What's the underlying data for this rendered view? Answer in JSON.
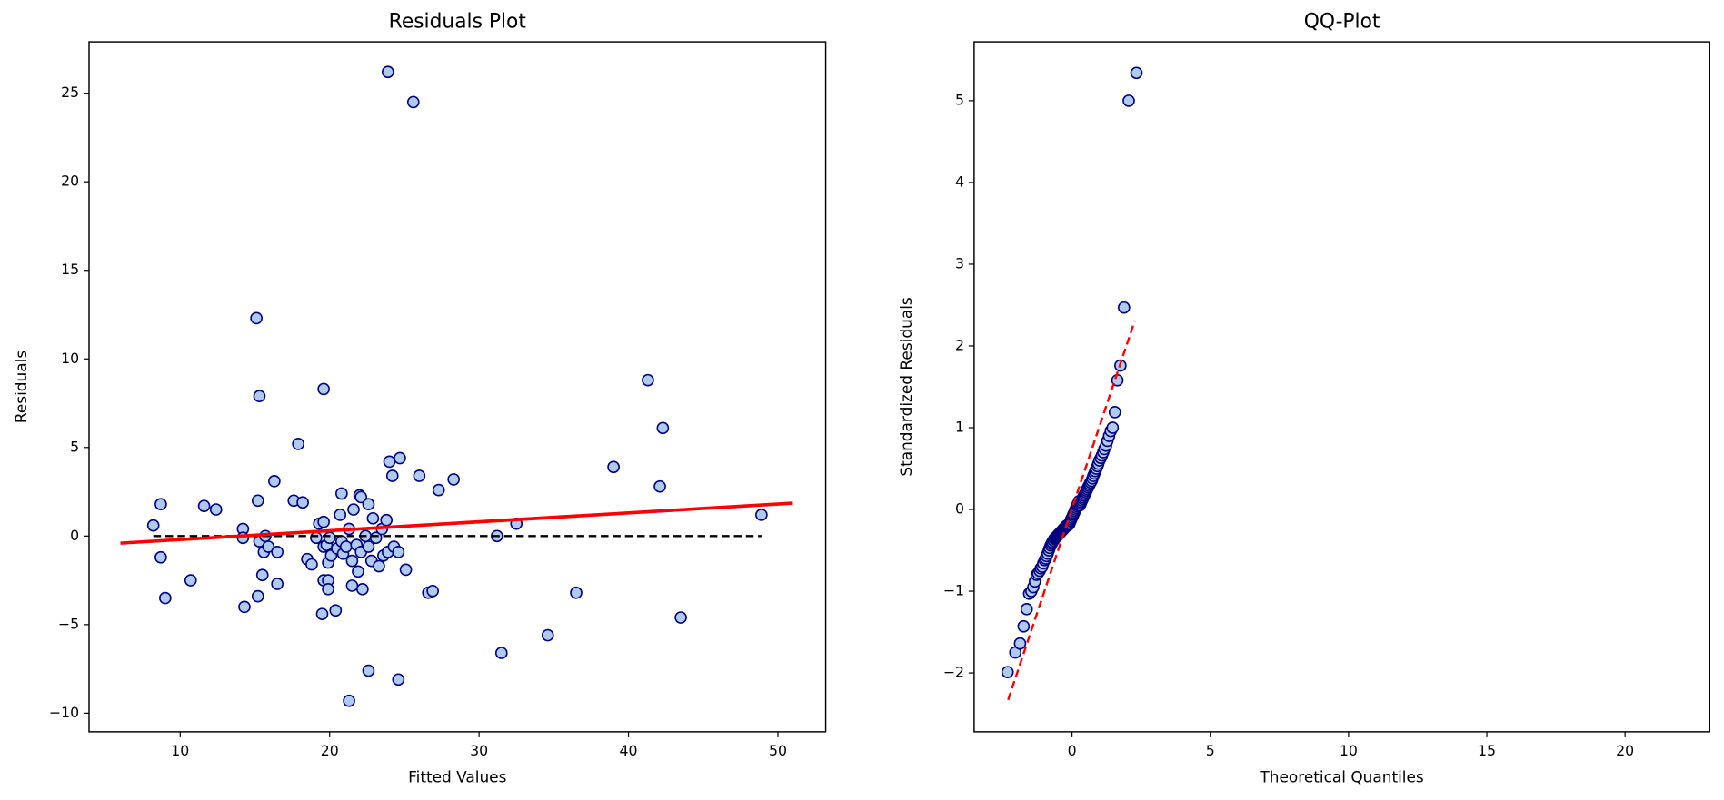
{
  "chart_data": [
    {
      "type": "scatter",
      "title": "Residuals Plot",
      "xlabel": "Fitted Values",
      "ylabel": "Residuals",
      "xlim": [
        3.9,
        53.2
      ],
      "ylim": [
        -11.05,
        27.9
      ],
      "xticks": [
        10,
        20,
        30,
        40,
        50
      ],
      "yticks": [
        {
          "value": -10,
          "label": "−10"
        },
        {
          "value": -5,
          "label": "−5"
        },
        0,
        5,
        10,
        15,
        20,
        25
      ],
      "color": "#aecbee",
      "edgecolor": "#000080",
      "x": [
        8.2,
        8.7,
        8.7,
        9.0,
        10.7,
        11.6,
        12.4,
        14.2,
        14.2,
        14.3,
        15.1,
        15.3,
        15.2,
        15.3,
        15.2,
        15.5,
        15.7,
        15.6,
        15.9,
        16.3,
        16.5,
        16.5,
        17.6,
        17.9,
        18.2,
        18.5,
        18.8,
        19.1,
        19.3,
        19.5,
        19.6,
        19.6,
        19.6,
        19.6,
        19.8,
        19.9,
        19.9,
        19.9,
        20.0,
        20.1,
        20.4,
        20.5,
        20.7,
        20.8,
        20.8,
        20.9,
        21.1,
        21.3,
        21.3,
        21.5,
        21.5,
        21.6,
        21.8,
        21.9,
        22.0,
        22.1,
        22.1,
        22.2,
        22.4,
        22.6,
        22.6,
        22.6,
        22.8,
        22.9,
        23.1,
        23.3,
        23.5,
        23.6,
        23.8,
        23.9,
        23.9,
        24.0,
        24.2,
        24.3,
        24.6,
        24.7,
        24.6,
        25.1,
        25.6,
        26.0,
        26.6,
        26.9,
        27.3,
        28.3,
        31.2,
        31.5,
        32.5,
        34.6,
        36.5,
        39.0,
        41.3,
        42.1,
        42.3,
        43.5,
        48.9
      ],
      "y": [
        0.6,
        1.8,
        -1.2,
        -3.5,
        -2.5,
        1.7,
        1.5,
        0.4,
        -0.1,
        -4.0,
        12.3,
        7.9,
        2.0,
        -0.3,
        -3.4,
        -2.2,
        0.0,
        -0.9,
        -0.6,
        3.1,
        -2.7,
        -0.9,
        2.0,
        5.2,
        1.9,
        -1.3,
        -1.6,
        -0.1,
        0.7,
        -4.4,
        8.3,
        0.8,
        -0.6,
        -2.5,
        -0.5,
        -2.5,
        -3.0,
        -1.5,
        -0.1,
        -1.1,
        -4.2,
        -0.7,
        1.2,
        2.4,
        -0.3,
        -1.0,
        -0.6,
        -9.3,
        0.4,
        -1.4,
        -2.8,
        1.5,
        -0.5,
        -2.0,
        2.3,
        2.2,
        -0.9,
        -3.0,
        0.0,
        -7.6,
        -0.6,
        1.8,
        -1.4,
        1.0,
        -0.1,
        -1.7,
        0.4,
        -1.1,
        0.9,
        26.2,
        -0.9,
        4.2,
        3.4,
        -0.6,
        -0.9,
        4.4,
        -8.1,
        -1.9,
        24.5,
        3.4,
        -3.2,
        -3.1,
        2.6,
        3.2,
        0.0,
        -6.6,
        0.7,
        -5.6,
        -3.2,
        3.9,
        8.8,
        2.8,
        6.1,
        -4.6,
        1.2
      ],
      "lines": [
        {
          "x": [
            8.2,
            48.9
          ],
          "y": [
            0,
            0
          ],
          "color": "#000000",
          "dash": true,
          "width": 2
        },
        {
          "x": [
            6.0,
            51.0
          ],
          "y": [
            -0.4,
            1.86
          ],
          "color": "#ff0000",
          "dash": false,
          "width": 3
        }
      ]
    },
    {
      "type": "scatter",
      "title": "QQ-Plot",
      "xlabel": "Theoretical Quantiles",
      "ylabel": "Standardized Residuals",
      "xlim": [
        -3.54,
        23.06
      ],
      "ylim": [
        -2.72,
        5.72
      ],
      "xticks": [
        0,
        5,
        10,
        15,
        20
      ],
      "yticks": [
        {
          "value": -2,
          "label": "−2"
        },
        {
          "value": -1,
          "label": "−1"
        },
        0,
        1,
        2,
        3,
        4,
        5
      ],
      "color": "#aecbee",
      "edgecolor": "#000080",
      "x": [
        -2.33,
        -2.05,
        -1.88,
        -1.75,
        -1.64,
        -1.55,
        -1.47,
        -1.4,
        -1.34,
        -1.28,
        -1.23,
        -1.17,
        -1.13,
        -1.08,
        -1.04,
        -0.99,
        -0.95,
        -0.92,
        -0.88,
        -0.84,
        -0.81,
        -0.77,
        -0.74,
        -0.71,
        -0.67,
        -0.64,
        -0.61,
        -0.58,
        -0.55,
        -0.52,
        -0.5,
        -0.47,
        -0.44,
        -0.41,
        -0.39,
        -0.36,
        -0.33,
        -0.31,
        -0.28,
        -0.25,
        -0.23,
        -0.2,
        -0.18,
        -0.15,
        -0.13,
        -0.1,
        -0.08,
        -0.05,
        -0.03,
        0,
        0.03,
        0.05,
        0.08,
        0.1,
        0.13,
        0.15,
        0.18,
        0.2,
        0.23,
        0.25,
        0.28,
        0.31,
        0.33,
        0.36,
        0.39,
        0.41,
        0.44,
        0.47,
        0.5,
        0.52,
        0.55,
        0.58,
        0.61,
        0.64,
        0.67,
        0.71,
        0.74,
        0.77,
        0.81,
        0.84,
        0.88,
        0.92,
        0.95,
        0.99,
        1.04,
        1.08,
        1.13,
        1.17,
        1.23,
        1.28,
        1.34,
        1.4,
        1.47,
        1.55,
        1.64,
        1.75,
        1.88,
        2.05,
        2.33
      ],
      "y": [
        -1.99,
        -1.75,
        -1.64,
        -1.43,
        -1.22,
        -1.03,
        -1.0,
        -0.95,
        -0.88,
        -0.8,
        -0.78,
        -0.75,
        -0.72,
        -0.7,
        -0.66,
        -0.62,
        -0.6,
        -0.57,
        -0.54,
        -0.5,
        -0.47,
        -0.44,
        -0.42,
        -0.4,
        -0.38,
        -0.36,
        -0.35,
        -0.34,
        -0.33,
        -0.32,
        -0.31,
        -0.3,
        -0.29,
        -0.28,
        -0.27,
        -0.26,
        -0.25,
        -0.24,
        -0.23,
        -0.22,
        -0.21,
        -0.2,
        -0.2,
        -0.19,
        -0.19,
        -0.18,
        -0.16,
        -0.14,
        -0.12,
        -0.1,
        -0.08,
        -0.06,
        -0.04,
        -0.02,
        0,
        0.02,
        0.04,
        0.06,
        0.08,
        0.1,
        0.05,
        0.07,
        0.09,
        0.11,
        0.13,
        0.15,
        0.17,
        0.19,
        0.21,
        0.23,
        0.25,
        0.27,
        0.29,
        0.31,
        0.33,
        0.35,
        0.38,
        0.41,
        0.44,
        0.47,
        0.5,
        0.53,
        0.56,
        0.6,
        0.63,
        0.66,
        0.7,
        0.74,
        0.78,
        0.84,
        0.9,
        0.96,
        1.0,
        1.19,
        1.58,
        1.76,
        2.47,
        5.0,
        5.34
      ],
      "lines": [
        {
          "x": [
            -2.31,
            2.27
          ],
          "y": [
            -2.33,
            2.31
          ],
          "color": "#ff0000",
          "dash": true,
          "width": 2
        }
      ]
    }
  ]
}
